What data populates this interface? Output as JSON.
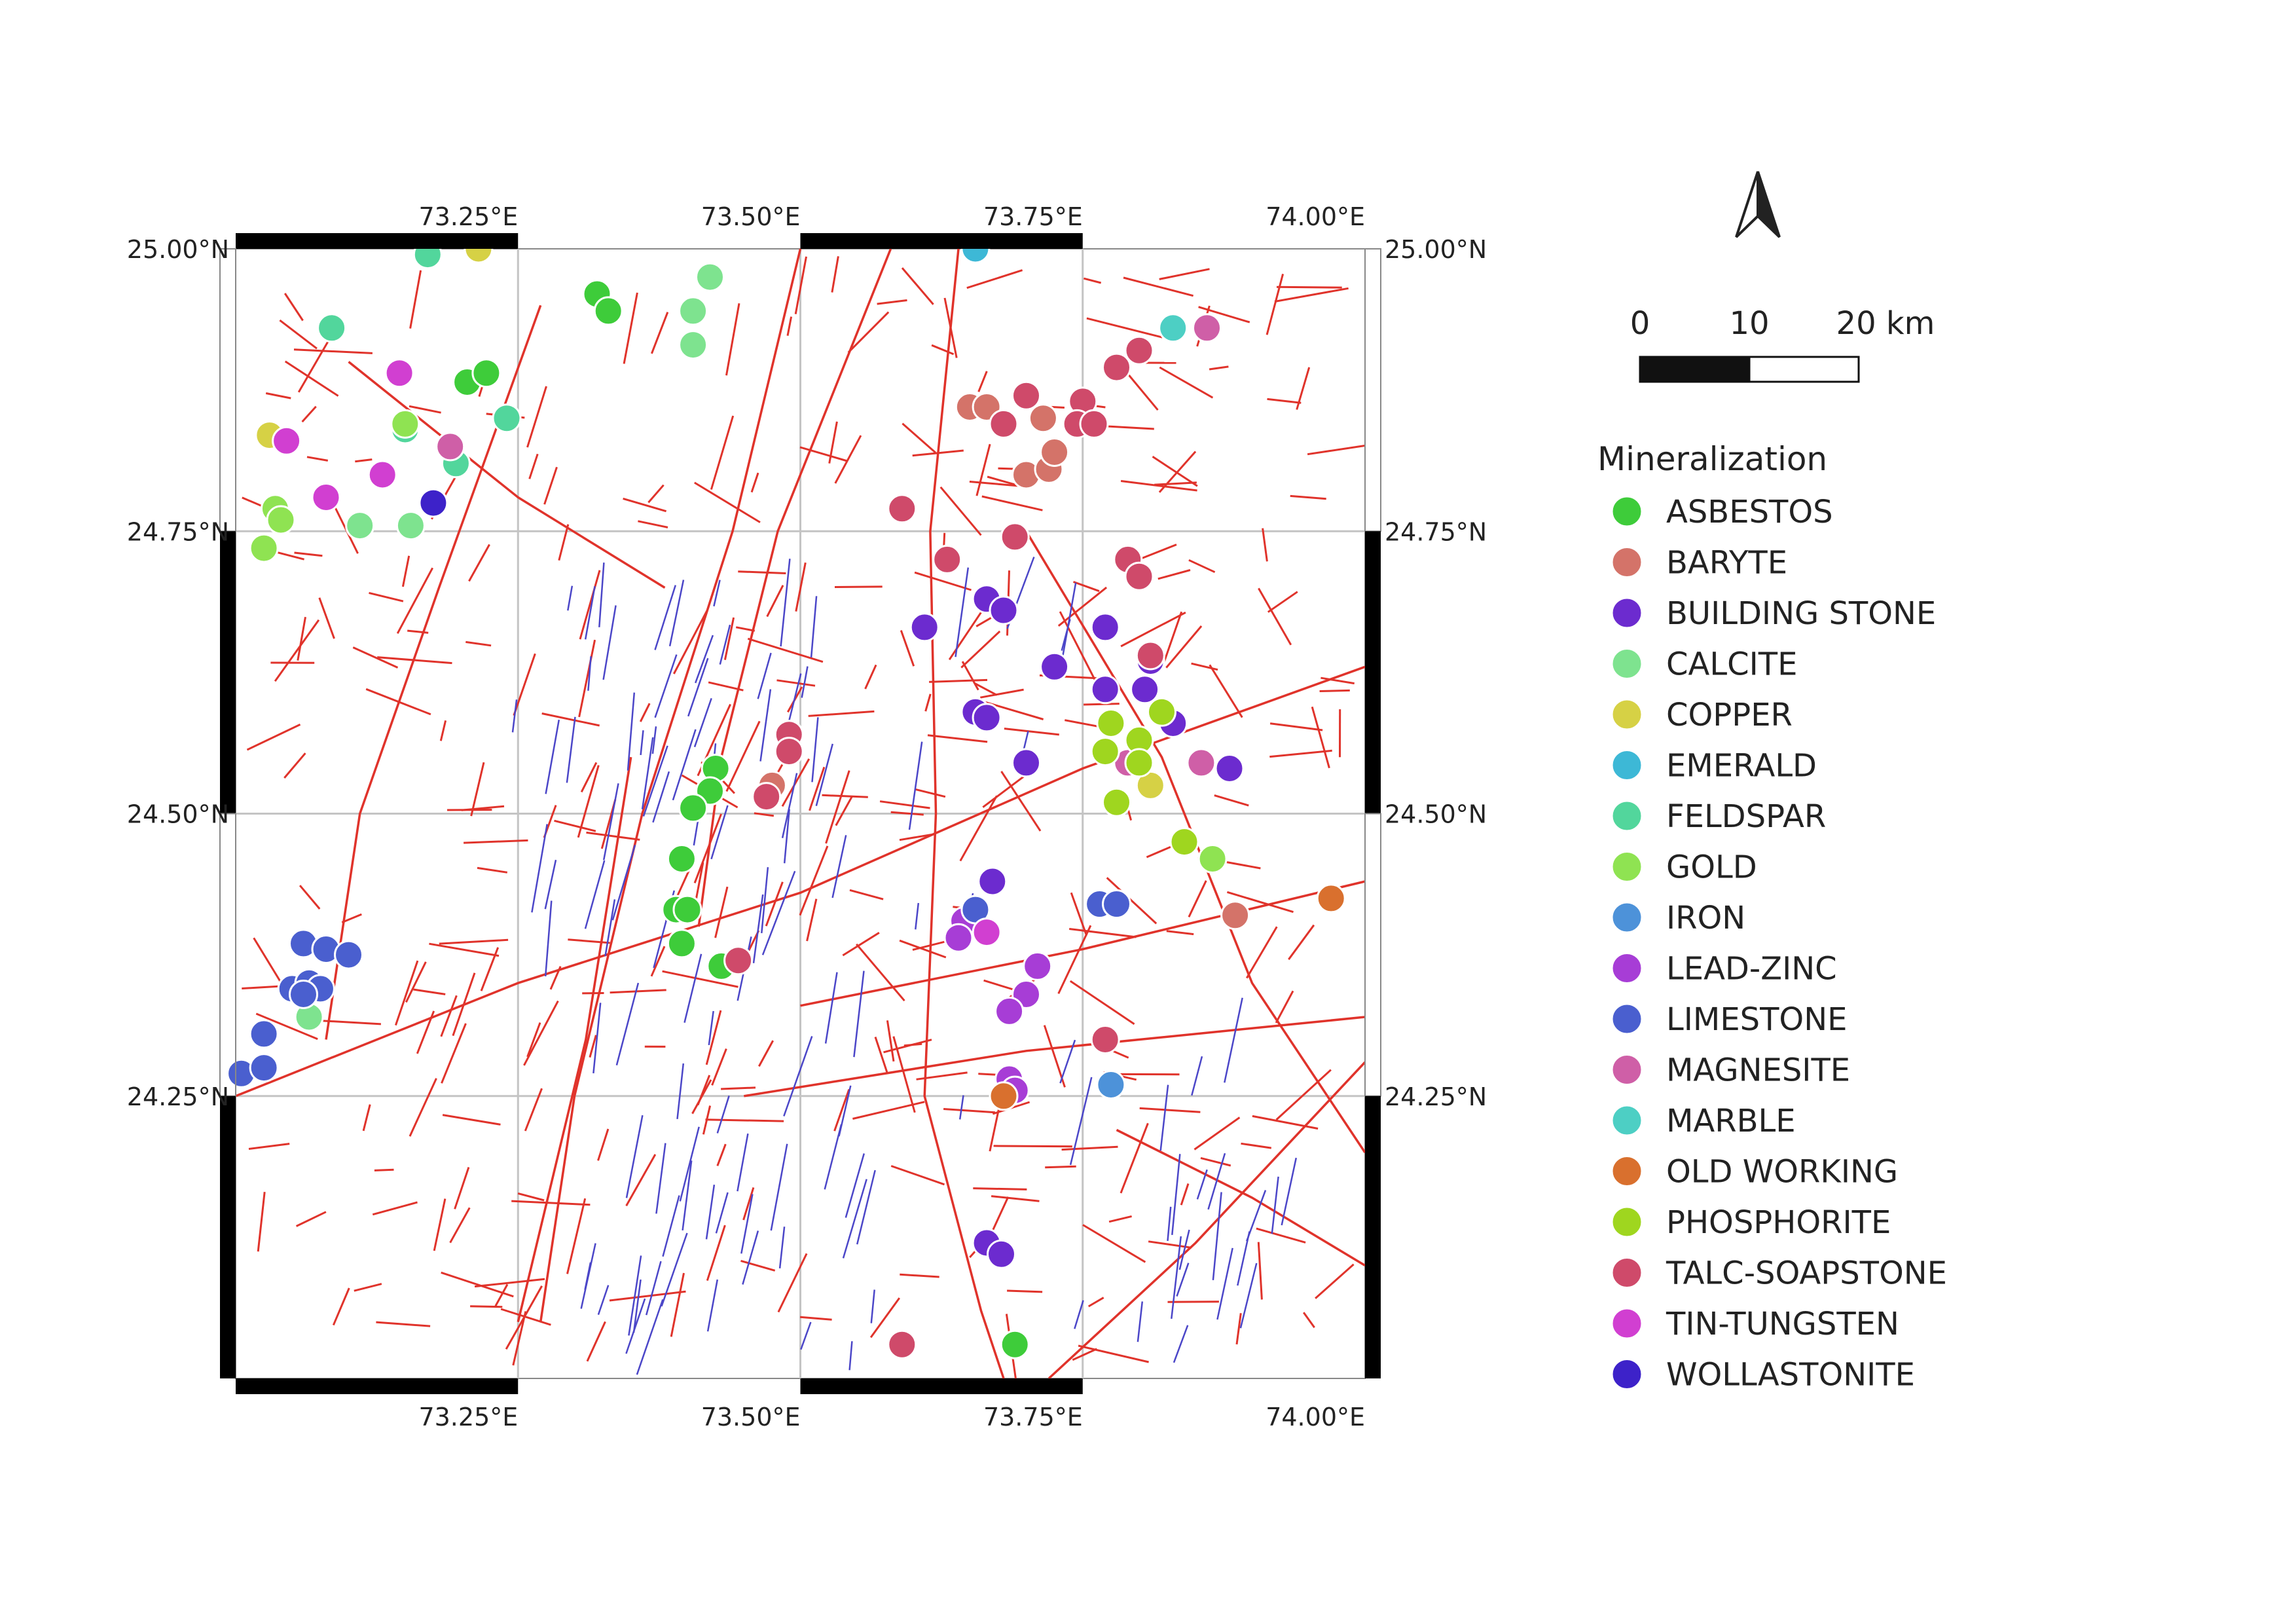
{
  "map": {
    "lon_range": [
      73.0,
      74.0
    ],
    "lat_range": [
      24.0,
      25.0
    ],
    "lon_ticks": [
      {
        "value": 73.25,
        "label": "73.25°E"
      },
      {
        "value": 73.5,
        "label": "73.50°E"
      },
      {
        "value": 73.75,
        "label": "73.75°E"
      },
      {
        "value": 74.0,
        "label": "74.00°E"
      }
    ],
    "lat_ticks": [
      {
        "value": 25.0,
        "label": "25.00°N"
      },
      {
        "value": 24.75,
        "label": "24.75°N"
      },
      {
        "value": 24.5,
        "label": "24.50°N"
      },
      {
        "value": 24.25,
        "label": "24.25°N"
      }
    ],
    "grid": true,
    "fault_color": "#e0332b",
    "dyke_color": "#4b46c8",
    "north_arrow_icon": "north-arrow-icon"
  },
  "scale_bar": {
    "labels": [
      "0",
      "10",
      "20 km"
    ]
  },
  "legend": {
    "title": "Mineralization",
    "position": "right",
    "items": [
      {
        "key": "ASBESTOS",
        "label": "ASBESTOS",
        "color": "#3ecc3a"
      },
      {
        "key": "BARYTE",
        "label": "BARYTE",
        "color": "#d47369"
      },
      {
        "key": "BUILDING_STONE",
        "label": "BUILDING STONE",
        "color": "#6c2bcf"
      },
      {
        "key": "CALCITE",
        "label": "CALCITE",
        "color": "#7ee38f"
      },
      {
        "key": "COPPER",
        "label": "COPPER",
        "color": "#d6d145"
      },
      {
        "key": "EMERALD",
        "label": "EMERALD",
        "color": "#3db8d6"
      },
      {
        "key": "FELDSPAR",
        "label": "FELDSPAR",
        "color": "#52d69c"
      },
      {
        "key": "GOLD",
        "label": "GOLD",
        "color": "#8fe352"
      },
      {
        "key": "IRON",
        "label": "IRON",
        "color": "#4d92d9"
      },
      {
        "key": "LEAD_ZINC",
        "label": "LEAD-ZINC",
        "color": "#a73dd6"
      },
      {
        "key": "LIMESTONE",
        "label": "LIMESTONE",
        "color": "#4a5fcf"
      },
      {
        "key": "MAGNESITE",
        "label": "MAGNESITE",
        "color": "#cf5fa7"
      },
      {
        "key": "MARBLE",
        "label": "MARBLE",
        "color": "#4dcfc4"
      },
      {
        "key": "OLD_WORKING",
        "label": "OLD WORKING",
        "color": "#d9702e"
      },
      {
        "key": "PHOSPHORITE",
        "label": "PHOSPHORITE",
        "color": "#9fd61f"
      },
      {
        "key": "TALC_SOAPSTONE",
        "label": "TALC-SOAPSTONE",
        "color": "#cf4a6a"
      },
      {
        "key": "TIN_TUNGSTEN",
        "label": "TIN-TUNGSTEN",
        "color": "#d13fd1"
      },
      {
        "key": "WOLLASTONITE",
        "label": "WOLLASTONITE",
        "color": "#3d22c9"
      }
    ]
  },
  "sites": [
    {
      "type": "ASBESTOS",
      "lon": 73.32,
      "lat": 24.96
    },
    {
      "type": "ASBESTOS",
      "lon": 73.33,
      "lat": 24.945
    },
    {
      "type": "ASBESTOS",
      "lon": 73.205,
      "lat": 24.882
    },
    {
      "type": "ASBESTOS",
      "lon": 73.222,
      "lat": 24.89
    },
    {
      "type": "ASBESTOS",
      "lon": 73.425,
      "lat": 24.54
    },
    {
      "type": "ASBESTOS",
      "lon": 73.42,
      "lat": 24.52
    },
    {
      "type": "ASBESTOS",
      "lon": 73.405,
      "lat": 24.505
    },
    {
      "type": "ASBESTOS",
      "lon": 73.395,
      "lat": 24.46
    },
    {
      "type": "ASBESTOS",
      "lon": 73.39,
      "lat": 24.415
    },
    {
      "type": "ASBESTOS",
      "lon": 73.4,
      "lat": 24.415
    },
    {
      "type": "ASBESTOS",
      "lon": 73.395,
      "lat": 24.385
    },
    {
      "type": "ASBESTOS",
      "lon": 73.43,
      "lat": 24.365
    },
    {
      "type": "ASBESTOS",
      "lon": 73.69,
      "lat": 24.03
    },
    {
      "type": "BARYTE",
      "lon": 73.65,
      "lat": 24.86
    },
    {
      "type": "BARYTE",
      "lon": 73.665,
      "lat": 24.86
    },
    {
      "type": "BARYTE",
      "lon": 73.715,
      "lat": 24.85
    },
    {
      "type": "BARYTE",
      "lon": 73.7,
      "lat": 24.8
    },
    {
      "type": "BARYTE",
      "lon": 73.72,
      "lat": 24.805
    },
    {
      "type": "BARYTE",
      "lon": 73.725,
      "lat": 24.82
    },
    {
      "type": "BARYTE",
      "lon": 73.475,
      "lat": 24.525
    },
    {
      "type": "BARYTE",
      "lon": 73.885,
      "lat": 24.41
    },
    {
      "type": "BUILDING_STONE",
      "lon": 73.61,
      "lat": 24.665
    },
    {
      "type": "BUILDING_STONE",
      "lon": 73.665,
      "lat": 24.69
    },
    {
      "type": "BUILDING_STONE",
      "lon": 73.68,
      "lat": 24.68
    },
    {
      "type": "BUILDING_STONE",
      "lon": 73.655,
      "lat": 24.59
    },
    {
      "type": "BUILDING_STONE",
      "lon": 73.665,
      "lat": 24.585
    },
    {
      "type": "BUILDING_STONE",
      "lon": 73.7,
      "lat": 24.545
    },
    {
      "type": "BUILDING_STONE",
      "lon": 73.725,
      "lat": 24.63
    },
    {
      "type": "BUILDING_STONE",
      "lon": 73.77,
      "lat": 24.665
    },
    {
      "type": "BUILDING_STONE",
      "lon": 73.77,
      "lat": 24.61
    },
    {
      "type": "BUILDING_STONE",
      "lon": 73.805,
      "lat": 24.61
    },
    {
      "type": "BUILDING_STONE",
      "lon": 73.81,
      "lat": 24.635
    },
    {
      "type": "BUILDING_STONE",
      "lon": 73.83,
      "lat": 24.58
    },
    {
      "type": "BUILDING_STONE",
      "lon": 73.88,
      "lat": 24.54
    },
    {
      "type": "BUILDING_STONE",
      "lon": 73.67,
      "lat": 24.44
    },
    {
      "type": "BUILDING_STONE",
      "lon": 73.665,
      "lat": 24.12
    },
    {
      "type": "BUILDING_STONE",
      "lon": 73.678,
      "lat": 24.11
    },
    {
      "type": "CALCITE",
      "lon": 73.42,
      "lat": 24.975
    },
    {
      "type": "CALCITE",
      "lon": 73.405,
      "lat": 24.945
    },
    {
      "type": "CALCITE",
      "lon": 73.405,
      "lat": 24.915
    },
    {
      "type": "CALCITE",
      "lon": 73.11,
      "lat": 24.755
    },
    {
      "type": "CALCITE",
      "lon": 73.155,
      "lat": 24.755
    },
    {
      "type": "CALCITE",
      "lon": 73.065,
      "lat": 24.32
    },
    {
      "type": "COPPER",
      "lon": 73.215,
      "lat": 25.0
    },
    {
      "type": "COPPER",
      "lon": 73.03,
      "lat": 24.835
    },
    {
      "type": "COPPER",
      "lon": 73.81,
      "lat": 24.525
    },
    {
      "type": "EMERALD",
      "lon": 73.655,
      "lat": 25.0
    },
    {
      "type": "FELDSPAR",
      "lon": 73.17,
      "lat": 24.995
    },
    {
      "type": "FELDSPAR",
      "lon": 73.085,
      "lat": 24.93
    },
    {
      "type": "FELDSPAR",
      "lon": 73.24,
      "lat": 24.85
    },
    {
      "type": "FELDSPAR",
      "lon": 73.195,
      "lat": 24.81
    },
    {
      "type": "FELDSPAR",
      "lon": 73.15,
      "lat": 24.84
    },
    {
      "type": "GOLD",
      "lon": 73.035,
      "lat": 24.77
    },
    {
      "type": "GOLD",
      "lon": 73.04,
      "lat": 24.76
    },
    {
      "type": "GOLD",
      "lon": 73.025,
      "lat": 24.735
    },
    {
      "type": "GOLD",
      "lon": 73.15,
      "lat": 24.845
    },
    {
      "type": "GOLD",
      "lon": 73.865,
      "lat": 24.46
    },
    {
      "type": "IRON",
      "lon": 73.775,
      "lat": 24.26
    },
    {
      "type": "LEAD_ZINC",
      "lon": 73.645,
      "lat": 24.405
    },
    {
      "type": "LEAD_ZINC",
      "lon": 73.64,
      "lat": 24.39
    },
    {
      "type": "LEAD_ZINC",
      "lon": 73.71,
      "lat": 24.365
    },
    {
      "type": "LEAD_ZINC",
      "lon": 73.7,
      "lat": 24.34
    },
    {
      "type": "LEAD_ZINC",
      "lon": 73.685,
      "lat": 24.325
    },
    {
      "type": "LEAD_ZINC",
      "lon": 73.685,
      "lat": 24.265
    },
    {
      "type": "LEAD_ZINC",
      "lon": 73.69,
      "lat": 24.255
    },
    {
      "type": "LIMESTONE",
      "lon": 73.06,
      "lat": 24.385
    },
    {
      "type": "LIMESTONE",
      "lon": 73.08,
      "lat": 24.38
    },
    {
      "type": "LIMESTONE",
      "lon": 73.1,
      "lat": 24.375
    },
    {
      "type": "LIMESTONE",
      "lon": 73.05,
      "lat": 24.345
    },
    {
      "type": "LIMESTONE",
      "lon": 73.065,
      "lat": 24.35
    },
    {
      "type": "LIMESTONE",
      "lon": 73.075,
      "lat": 24.345
    },
    {
      "type": "LIMESTONE",
      "lon": 73.06,
      "lat": 24.34
    },
    {
      "type": "LIMESTONE",
      "lon": 73.025,
      "lat": 24.305
    },
    {
      "type": "LIMESTONE",
      "lon": 73.005,
      "lat": 24.27
    },
    {
      "type": "LIMESTONE",
      "lon": 73.025,
      "lat": 24.275
    },
    {
      "type": "LIMESTONE",
      "lon": 73.655,
      "lat": 24.415
    },
    {
      "type": "LIMESTONE",
      "lon": 73.765,
      "lat": 24.42
    },
    {
      "type": "LIMESTONE",
      "lon": 73.78,
      "lat": 24.42
    },
    {
      "type": "MAGNESITE",
      "lon": 73.86,
      "lat": 24.93
    },
    {
      "type": "MAGNESITE",
      "lon": 73.19,
      "lat": 24.825
    },
    {
      "type": "MAGNESITE",
      "lon": 73.79,
      "lat": 24.545
    },
    {
      "type": "MAGNESITE",
      "lon": 73.855,
      "lat": 24.545
    },
    {
      "type": "MARBLE",
      "lon": 73.83,
      "lat": 24.93
    },
    {
      "type": "OLD_WORKING",
      "lon": 73.97,
      "lat": 24.425
    },
    {
      "type": "OLD_WORKING",
      "lon": 73.68,
      "lat": 24.25
    },
    {
      "type": "PHOSPHORITE",
      "lon": 73.775,
      "lat": 24.58
    },
    {
      "type": "PHOSPHORITE",
      "lon": 73.77,
      "lat": 24.555
    },
    {
      "type": "PHOSPHORITE",
      "lon": 73.8,
      "lat": 24.565
    },
    {
      "type": "PHOSPHORITE",
      "lon": 73.8,
      "lat": 24.545
    },
    {
      "type": "PHOSPHORITE",
      "lon": 73.82,
      "lat": 24.59
    },
    {
      "type": "PHOSPHORITE",
      "lon": 73.78,
      "lat": 24.51
    },
    {
      "type": "PHOSPHORITE",
      "lon": 73.84,
      "lat": 24.475
    },
    {
      "type": "TALC_SOAPSTONE",
      "lon": 73.78,
      "lat": 24.895
    },
    {
      "type": "TALC_SOAPSTONE",
      "lon": 73.8,
      "lat": 24.91
    },
    {
      "type": "TALC_SOAPSTONE",
      "lon": 73.7,
      "lat": 24.87
    },
    {
      "type": "TALC_SOAPSTONE",
      "lon": 73.75,
      "lat": 24.865
    },
    {
      "type": "TALC_SOAPSTONE",
      "lon": 73.68,
      "lat": 24.845
    },
    {
      "type": "TALC_SOAPSTONE",
      "lon": 73.745,
      "lat": 24.845
    },
    {
      "type": "TALC_SOAPSTONE",
      "lon": 73.76,
      "lat": 24.845
    },
    {
      "type": "TALC_SOAPSTONE",
      "lon": 73.59,
      "lat": 24.77
    },
    {
      "type": "TALC_SOAPSTONE",
      "lon": 73.63,
      "lat": 24.725
    },
    {
      "type": "TALC_SOAPSTONE",
      "lon": 73.69,
      "lat": 24.745
    },
    {
      "type": "TALC_SOAPSTONE",
      "lon": 73.79,
      "lat": 24.725
    },
    {
      "type": "TALC_SOAPSTONE",
      "lon": 73.8,
      "lat": 24.71
    },
    {
      "type": "TALC_SOAPSTONE",
      "lon": 73.81,
      "lat": 24.64
    },
    {
      "type": "TALC_SOAPSTONE",
      "lon": 73.49,
      "lat": 24.57
    },
    {
      "type": "TALC_SOAPSTONE",
      "lon": 73.49,
      "lat": 24.555
    },
    {
      "type": "TALC_SOAPSTONE",
      "lon": 73.47,
      "lat": 24.515
    },
    {
      "type": "TALC_SOAPSTONE",
      "lon": 73.445,
      "lat": 24.37
    },
    {
      "type": "TALC_SOAPSTONE",
      "lon": 73.77,
      "lat": 24.3
    },
    {
      "type": "TALC_SOAPSTONE",
      "lon": 73.59,
      "lat": 24.03
    },
    {
      "type": "TIN_TUNGSTEN",
      "lon": 73.145,
      "lat": 24.89
    },
    {
      "type": "TIN_TUNGSTEN",
      "lon": 73.045,
      "lat": 24.83
    },
    {
      "type": "TIN_TUNGSTEN",
      "lon": 73.13,
      "lat": 24.8
    },
    {
      "type": "TIN_TUNGSTEN",
      "lon": 73.08,
      "lat": 24.78
    },
    {
      "type": "TIN_TUNGSTEN",
      "lon": 73.665,
      "lat": 24.395
    },
    {
      "type": "WOLLASTONITE",
      "lon": 73.175,
      "lat": 24.775
    }
  ]
}
